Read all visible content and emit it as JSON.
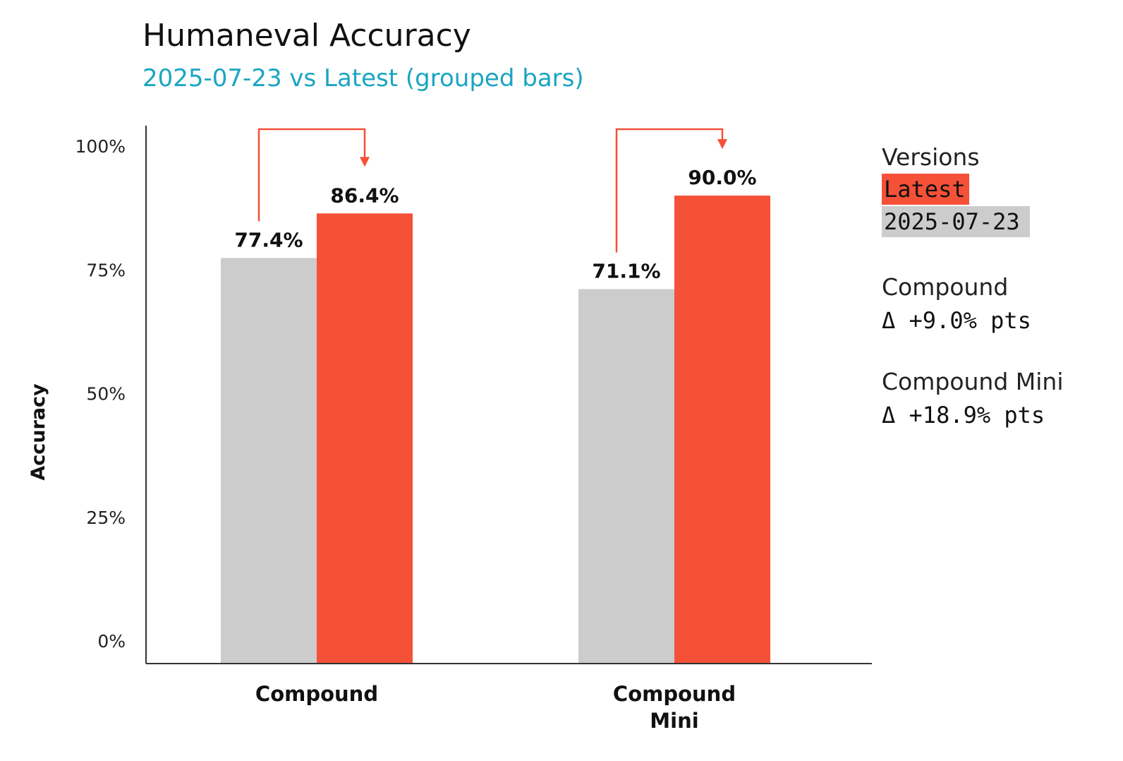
{
  "colors": {
    "latest": "#F55038",
    "baseline": "#CCCCCC",
    "subtitle": "#1AA5C2",
    "arrow": "#F55038",
    "axis": "#333333"
  },
  "chart_data": {
    "type": "bar",
    "title": "Humaneval Accuracy",
    "subtitle": "2025-07-23 vs Latest (grouped bars)",
    "ylabel": "Accuracy",
    "xlabel": "",
    "ylim": [
      0,
      100
    ],
    "yticks": [
      0,
      25,
      50,
      75,
      100
    ],
    "ytick_labels": [
      "0%",
      "25%",
      "50%",
      "75%",
      "100%"
    ],
    "grid": false,
    "categories": [
      [
        "Compound"
      ],
      [
        "Compound",
        "Mini"
      ]
    ],
    "series": [
      {
        "name": "2025-07-23",
        "color": "#CCCCCC",
        "values": [
          77.4,
          71.1
        ],
        "labels": [
          "77.4%",
          "71.1%"
        ]
      },
      {
        "name": "Latest",
        "color": "#F55038",
        "values": [
          86.4,
          90.0
        ],
        "labels": [
          "86.4%",
          "90.0%"
        ]
      }
    ],
    "legend": {
      "title": "Versions",
      "placement": "right",
      "entries": [
        "Latest",
        "2025-07-23"
      ]
    },
    "annotations": [
      {
        "category": "Compound",
        "delta": "Δ +9.0% pts"
      },
      {
        "category": "Compound Mini",
        "delta": "Δ +18.9% pts"
      }
    ]
  }
}
